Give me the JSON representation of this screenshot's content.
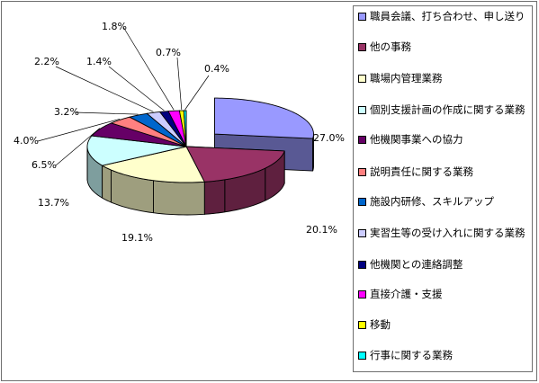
{
  "chart_data": {
    "type": "pie",
    "title": "",
    "series": [
      {
        "label": "職員会議、打ち合わせ、申し送り",
        "value": 27.0,
        "value_label": "27.0%",
        "color": "#9999FF",
        "exploded": true
      },
      {
        "label": "他の事務",
        "value": 20.1,
        "value_label": "20.1%",
        "color": "#993366",
        "exploded": false
      },
      {
        "label": "職場内管理業務",
        "value": 19.1,
        "value_label": "19.1%",
        "color": "#FFFFCC",
        "exploded": false
      },
      {
        "label": "個別支援計画の作成に関する業務",
        "value": 13.7,
        "value_label": "13.7%",
        "color": "#CCFFFF",
        "exploded": false
      },
      {
        "label": "他機関事業への協力",
        "value": 6.5,
        "value_label": "6.5%",
        "color": "#660066",
        "exploded": false
      },
      {
        "label": "説明責任に関する業務",
        "value": 4.0,
        "value_label": "4.0%",
        "color": "#FF8080",
        "exploded": false
      },
      {
        "label": "施設内研修、スキルアップ",
        "value": 3.2,
        "value_label": "3.2%",
        "color": "#0066CC",
        "exploded": false
      },
      {
        "label": "実習生等の受け入れに関する業務",
        "value": 2.2,
        "value_label": "2.2%",
        "color": "#CCCCFF",
        "exploded": false
      },
      {
        "label": "他機関との連絡調整",
        "value": 1.4,
        "value_label": "1.4%",
        "color": "#000080",
        "exploded": false
      },
      {
        "label": "直接介護・支援",
        "value": 1.8,
        "value_label": "1.8%",
        "color": "#FF00FF",
        "exploded": false
      },
      {
        "label": "移動",
        "value": 0.7,
        "value_label": "0.7%",
        "color": "#FFFF00",
        "exploded": false
      },
      {
        "label": "行事に関する業務",
        "value": 0.4,
        "value_label": "0.4%",
        "color": "#00FFFF",
        "exploded": false
      }
    ],
    "legend_position": "right",
    "three_d": true,
    "start_angle": "12 o'clock",
    "direction": "clockwise"
  }
}
